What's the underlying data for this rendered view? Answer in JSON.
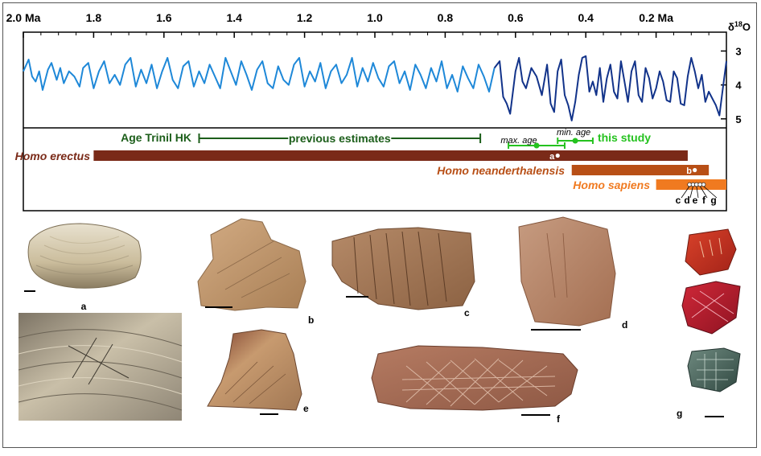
{
  "chart_data": {
    "type": "line",
    "x_axis": {
      "unit_label": "Ma",
      "range": [
        2.0,
        0.0
      ],
      "reversed": true,
      "tick_labels": [
        "2.0 Ma",
        "1.8",
        "1.6",
        "1.4",
        "1.2",
        "1.0",
        "0.8",
        "0.6",
        "0.4",
        "0.2 Ma"
      ],
      "tick_values": [
        2.0,
        1.8,
        1.6,
        1.4,
        1.2,
        1.0,
        0.8,
        0.6,
        0.4,
        0.2
      ]
    },
    "y_axis": {
      "label": "δ18O",
      "range": [
        5.1,
        2.8
      ],
      "reversed": true,
      "tick_labels": [
        "3",
        "4",
        "5"
      ],
      "tick_values": [
        3,
        4,
        5
      ]
    },
    "series": [
      {
        "color_older": "#1e88d8",
        "color_younger": "#12338a",
        "color_change_at": 0.65,
        "points": [
          [
            2.0,
            3.6
          ],
          [
            1.985,
            3.25
          ],
          [
            1.975,
            3.75
          ],
          [
            1.965,
            3.9
          ],
          [
            1.955,
            3.6
          ],
          [
            1.945,
            4.15
          ],
          [
            1.93,
            3.55
          ],
          [
            1.92,
            3.35
          ],
          [
            1.905,
            3.85
          ],
          [
            1.895,
            3.5
          ],
          [
            1.885,
            3.95
          ],
          [
            1.87,
            3.6
          ],
          [
            1.855,
            3.75
          ],
          [
            1.84,
            4.05
          ],
          [
            1.83,
            3.5
          ],
          [
            1.815,
            3.35
          ],
          [
            1.8,
            4.1
          ],
          [
            1.785,
            3.6
          ],
          [
            1.77,
            3.3
          ],
          [
            1.755,
            3.95
          ],
          [
            1.74,
            3.7
          ],
          [
            1.725,
            4.0
          ],
          [
            1.71,
            3.4
          ],
          [
            1.695,
            3.2
          ],
          [
            1.68,
            4.05
          ],
          [
            1.665,
            3.55
          ],
          [
            1.65,
            3.95
          ],
          [
            1.635,
            3.4
          ],
          [
            1.62,
            4.1
          ],
          [
            1.605,
            3.6
          ],
          [
            1.59,
            3.2
          ],
          [
            1.575,
            3.85
          ],
          [
            1.56,
            4.1
          ],
          [
            1.545,
            3.45
          ],
          [
            1.53,
            3.3
          ],
          [
            1.515,
            4.05
          ],
          [
            1.5,
            3.6
          ],
          [
            1.485,
            3.95
          ],
          [
            1.47,
            3.4
          ],
          [
            1.455,
            3.75
          ],
          [
            1.44,
            4.1
          ],
          [
            1.425,
            3.2
          ],
          [
            1.41,
            3.6
          ],
          [
            1.395,
            4.0
          ],
          [
            1.38,
            3.3
          ],
          [
            1.365,
            3.7
          ],
          [
            1.35,
            4.15
          ],
          [
            1.335,
            3.55
          ],
          [
            1.32,
            3.3
          ],
          [
            1.305,
            3.95
          ],
          [
            1.29,
            4.1
          ],
          [
            1.275,
            3.45
          ],
          [
            1.26,
            3.85
          ],
          [
            1.245,
            4.0
          ],
          [
            1.23,
            3.4
          ],
          [
            1.215,
            3.2
          ],
          [
            1.2,
            4.05
          ],
          [
            1.185,
            3.6
          ],
          [
            1.17,
            3.9
          ],
          [
            1.155,
            3.35
          ],
          [
            1.14,
            4.1
          ],
          [
            1.125,
            3.6
          ],
          [
            1.11,
            3.4
          ],
          [
            1.095,
            3.95
          ],
          [
            1.08,
            3.7
          ],
          [
            1.065,
            3.2
          ],
          [
            1.05,
            4.05
          ],
          [
            1.035,
            3.5
          ],
          [
            1.02,
            3.9
          ],
          [
            1.005,
            3.35
          ],
          [
            0.99,
            3.8
          ],
          [
            0.975,
            4.05
          ],
          [
            0.96,
            3.45
          ],
          [
            0.945,
            3.3
          ],
          [
            0.93,
            3.95
          ],
          [
            0.915,
            3.6
          ],
          [
            0.9,
            4.15
          ],
          [
            0.885,
            3.4
          ],
          [
            0.87,
            3.7
          ],
          [
            0.855,
            4.1
          ],
          [
            0.84,
            3.5
          ],
          [
            0.825,
            3.9
          ],
          [
            0.81,
            3.3
          ],
          [
            0.795,
            4.1
          ],
          [
            0.78,
            3.7
          ],
          [
            0.765,
            4.2
          ],
          [
            0.75,
            3.45
          ],
          [
            0.735,
            3.8
          ],
          [
            0.72,
            4.1
          ],
          [
            0.705,
            3.4
          ],
          [
            0.69,
            3.75
          ],
          [
            0.675,
            4.2
          ],
          [
            0.66,
            3.5
          ],
          [
            0.645,
            3.3
          ],
          [
            0.635,
            4.35
          ],
          [
            0.625,
            4.55
          ],
          [
            0.615,
            4.85
          ],
          [
            0.6,
            3.6
          ],
          [
            0.59,
            3.2
          ],
          [
            0.58,
            3.9
          ],
          [
            0.57,
            4.1
          ],
          [
            0.555,
            3.5
          ],
          [
            0.54,
            3.75
          ],
          [
            0.525,
            4.3
          ],
          [
            0.51,
            3.4
          ],
          [
            0.5,
            4.55
          ],
          [
            0.49,
            4.8
          ],
          [
            0.48,
            3.6
          ],
          [
            0.47,
            3.25
          ],
          [
            0.46,
            4.3
          ],
          [
            0.45,
            4.6
          ],
          [
            0.44,
            5.05
          ],
          [
            0.43,
            4.5
          ],
          [
            0.42,
            3.7
          ],
          [
            0.41,
            3.2
          ],
          [
            0.4,
            3.15
          ],
          [
            0.39,
            4.2
          ],
          [
            0.38,
            3.9
          ],
          [
            0.37,
            4.3
          ],
          [
            0.36,
            3.5
          ],
          [
            0.35,
            4.5
          ],
          [
            0.34,
            3.8
          ],
          [
            0.33,
            3.4
          ],
          [
            0.32,
            4.2
          ],
          [
            0.31,
            4.4
          ],
          [
            0.3,
            3.3
          ],
          [
            0.29,
            3.9
          ],
          [
            0.28,
            4.5
          ],
          [
            0.27,
            3.6
          ],
          [
            0.26,
            3.3
          ],
          [
            0.25,
            4.3
          ],
          [
            0.24,
            4.5
          ],
          [
            0.23,
            3.5
          ],
          [
            0.22,
            3.8
          ],
          [
            0.21,
            4.4
          ],
          [
            0.2,
            4.1
          ],
          [
            0.19,
            3.6
          ],
          [
            0.18,
            3.9
          ],
          [
            0.17,
            4.45
          ],
          [
            0.16,
            4.5
          ],
          [
            0.15,
            3.6
          ],
          [
            0.14,
            3.8
          ],
          [
            0.13,
            4.55
          ],
          [
            0.12,
            4.6
          ],
          [
            0.11,
            3.75
          ],
          [
            0.1,
            3.2
          ],
          [
            0.09,
            3.6
          ],
          [
            0.08,
            4.1
          ],
          [
            0.07,
            3.7
          ],
          [
            0.06,
            4.5
          ],
          [
            0.05,
            4.2
          ],
          [
            0.04,
            4.4
          ],
          [
            0.03,
            4.6
          ],
          [
            0.02,
            4.9
          ],
          [
            0.01,
            4.1
          ],
          [
            0.0,
            3.3
          ]
        ]
      }
    ],
    "timeline": {
      "age_trinil_label": "Age Trinil HK",
      "previous_estimates": {
        "label": "previous estimates",
        "from": 1.5,
        "to": 0.7
      },
      "this_study": {
        "label": "this study",
        "max_age_label": "max. age",
        "max_age": 0.54,
        "max_age_err": [
          0.62,
          0.46
        ],
        "min_age_label": "min. age",
        "min_age": 0.43,
        "min_age_err": [
          0.48,
          0.38
        ]
      },
      "species": [
        {
          "name": "Homo erectus",
          "from": 1.8,
          "to": 0.11,
          "color": "#7a2a18",
          "marker": "a",
          "marker_at": 0.48
        },
        {
          "name": "Homo neanderthalensis",
          "from": 0.44,
          "to": 0.05,
          "color": "#b84f16",
          "marker": "b",
          "marker_at": 0.09
        },
        {
          "name": "Homo sapiens",
          "from": 0.2,
          "to": 0.0,
          "color": "#f07a20",
          "markers": [
            "c",
            "d",
            "e",
            "f",
            "g"
          ],
          "markers_at": [
            0.105,
            0.095,
            0.085,
            0.075,
            0.065
          ]
        }
      ]
    }
  },
  "specimens": {
    "a": "a",
    "b": "b",
    "c": "c",
    "d": "d",
    "e": "e",
    "f": "f",
    "g": "g"
  }
}
